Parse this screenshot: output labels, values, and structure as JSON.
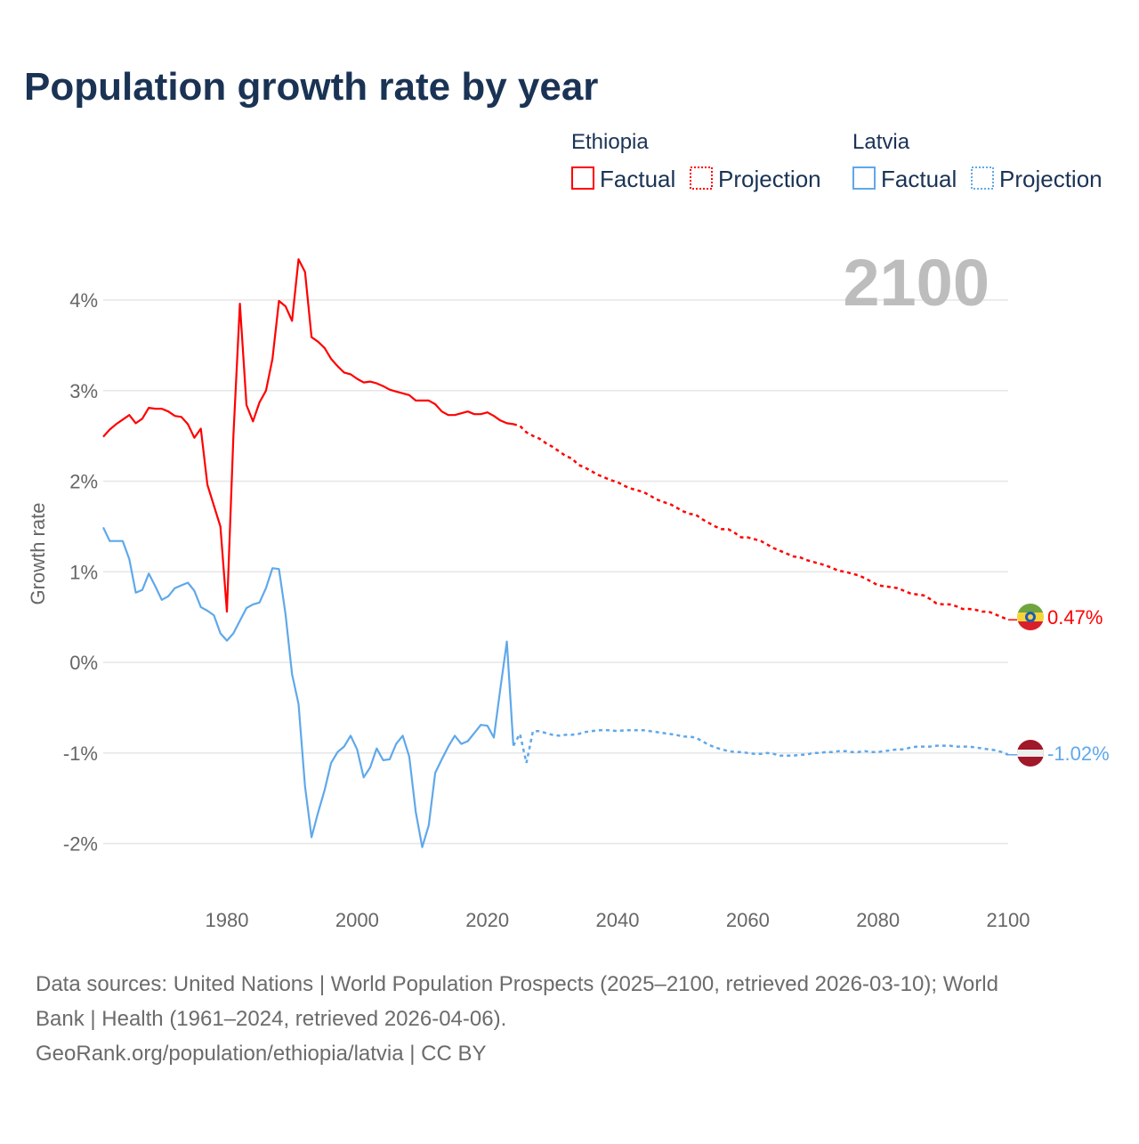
{
  "title": "Population growth rate by year",
  "current_year": "2100",
  "legend": {
    "groups": [
      {
        "country": "Ethiopia",
        "factual": "Factual",
        "projection": "Projection"
      },
      {
        "country": "Latvia",
        "factual": "Factual",
        "projection": "Projection"
      }
    ]
  },
  "footer": {
    "line1": "Data sources: United Nations | World Population Prospects (2025–2100, retrieved 2026-03-10); World",
    "line2": "Bank | Health (1961–2024, retrieved 2026-04-06).",
    "line3": "GeoRank.org/population/ethiopia/latvia | CC BY"
  },
  "chart_data": {
    "type": "line",
    "title": "Population growth rate by year",
    "xlabel": "",
    "ylabel": "Growth rate",
    "xlim": [
      1961,
      2100
    ],
    "ylim": [
      -2.5,
      4.5
    ],
    "x_ticks": [
      1980,
      2000,
      2020,
      2040,
      2060,
      2080,
      2100
    ],
    "x_tick_labels": [
      "1980",
      "2000",
      "2020",
      "2040",
      "2060",
      "2080",
      "2100"
    ],
    "y_ticks": [
      4,
      3,
      2,
      1,
      0,
      -1,
      -2
    ],
    "y_tick_labels": [
      "4%",
      "3%",
      "2%",
      "1%",
      "0%",
      "-1%",
      "-2%"
    ],
    "grid": true,
    "legend_position": "top-right",
    "series": [
      {
        "name": "Ethiopia",
        "color": "#ff0000",
        "end_label": "0.47%",
        "factual_start": 1961,
        "factual": [
          2.49,
          2.57,
          2.63,
          2.68,
          2.73,
          2.64,
          2.69,
          2.81,
          2.8,
          2.8,
          2.77,
          2.72,
          2.71,
          2.63,
          2.48,
          2.58,
          1.96,
          1.73,
          1.5,
          0.56,
          2.5,
          3.96,
          2.84,
          2.66,
          2.87,
          3.0,
          3.35,
          3.99,
          3.93,
          3.77,
          4.45,
          4.31,
          3.59,
          3.54,
          3.47,
          3.35,
          3.27,
          3.2,
          3.18,
          3.13,
          3.09,
          3.1,
          3.08,
          3.05,
          3.01,
          2.99,
          2.97,
          2.95,
          2.89,
          2.89,
          2.89,
          2.85,
          2.77,
          2.73,
          2.73,
          2.75,
          2.77,
          2.74,
          2.74,
          2.76,
          2.72,
          2.67,
          2.64,
          2.63
        ],
        "projection_start": 2024,
        "projection": [
          2.63,
          2.61,
          2.54,
          2.5,
          2.47,
          2.42,
          2.38,
          2.33,
          2.28,
          2.25,
          2.18,
          2.15,
          2.11,
          2.07,
          2.04,
          2.01,
          1.99,
          1.95,
          1.92,
          1.9,
          1.88,
          1.84,
          1.8,
          1.77,
          1.75,
          1.71,
          1.67,
          1.64,
          1.63,
          1.58,
          1.54,
          1.5,
          1.47,
          1.47,
          1.43,
          1.38,
          1.38,
          1.36,
          1.34,
          1.3,
          1.26,
          1.23,
          1.2,
          1.17,
          1.16,
          1.13,
          1.11,
          1.09,
          1.07,
          1.04,
          1.01,
          1.0,
          0.98,
          0.96,
          0.93,
          0.89,
          0.85,
          0.84,
          0.83,
          0.82,
          0.79,
          0.76,
          0.75,
          0.74,
          0.7,
          0.65,
          0.64,
          0.64,
          0.62,
          0.59,
          0.59,
          0.58,
          0.56,
          0.56,
          0.53,
          0.5,
          0.47
        ]
      },
      {
        "name": "Latvia",
        "color": "#5fa8ea",
        "end_label": "-1.02%",
        "factual_start": 1961,
        "factual": [
          1.49,
          1.34,
          1.34,
          1.34,
          1.14,
          0.77,
          0.8,
          0.98,
          0.84,
          0.69,
          0.73,
          0.82,
          0.85,
          0.88,
          0.79,
          0.61,
          0.57,
          0.52,
          0.32,
          0.24,
          0.32,
          0.46,
          0.6,
          0.64,
          0.66,
          0.82,
          1.04,
          1.03,
          0.53,
          -0.13,
          -0.46,
          -1.37,
          -1.93,
          -1.66,
          -1.41,
          -1.11,
          -0.99,
          -0.93,
          -0.81,
          -0.96,
          -1.27,
          -1.16,
          -0.95,
          -1.08,
          -1.07,
          -0.9,
          -0.81,
          -1.04,
          -1.65,
          -2.04,
          -1.8,
          -1.22,
          -1.07,
          -0.93,
          -0.81,
          -0.9,
          -0.87,
          -0.78,
          -0.69,
          -0.7,
          -0.83,
          -0.29,
          0.23,
          -0.92
        ],
        "projection_start": 2024,
        "projection": [
          -0.92,
          -0.79,
          -1.11,
          -0.76,
          -0.76,
          -0.78,
          -0.8,
          -0.81,
          -0.8,
          -0.8,
          -0.79,
          -0.77,
          -0.76,
          -0.75,
          -0.75,
          -0.75,
          -0.76,
          -0.75,
          -0.75,
          -0.75,
          -0.75,
          -0.76,
          -0.77,
          -0.78,
          -0.79,
          -0.8,
          -0.82,
          -0.82,
          -0.83,
          -0.87,
          -0.91,
          -0.94,
          -0.96,
          -0.98,
          -0.99,
          -0.99,
          -1.0,
          -1.01,
          -1.01,
          -1.0,
          -1.01,
          -1.03,
          -1.03,
          -1.03,
          -1.02,
          -1.02,
          -1.0,
          -1.0,
          -0.99,
          -0.99,
          -0.98,
          -0.98,
          -0.99,
          -0.99,
          -0.98,
          -0.99,
          -0.99,
          -0.98,
          -0.97,
          -0.96,
          -0.96,
          -0.94,
          -0.93,
          -0.93,
          -0.93,
          -0.92,
          -0.92,
          -0.92,
          -0.93,
          -0.93,
          -0.93,
          -0.94,
          -0.95,
          -0.96,
          -0.97,
          -0.99,
          -1.02
        ]
      }
    ]
  }
}
